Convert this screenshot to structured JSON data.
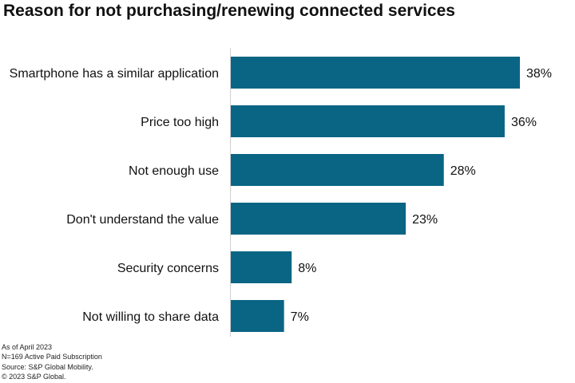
{
  "chart_data": {
    "type": "bar",
    "orientation": "horizontal",
    "title": "Reason for not purchasing/renewing connected services",
    "categories": [
      "Smartphone has a similar application",
      "Price too high",
      "Not enough use",
      "Don't understand the value",
      "Security concerns",
      "Not willing to share data"
    ],
    "values": [
      38,
      36,
      28,
      23,
      8,
      7
    ],
    "value_labels": [
      "38%",
      "36%",
      "28%",
      "23%",
      "8%",
      "7%"
    ],
    "xlabel": "",
    "ylabel": "",
    "xlim": [
      0,
      40
    ],
    "grid": false,
    "bar_color": "#0a6584"
  },
  "notes": [
    "As of April 2023",
    "N=169 Active Paid Subscription",
    "Source: S&P Global Mobility.",
    "© 2023 S&P Global."
  ]
}
